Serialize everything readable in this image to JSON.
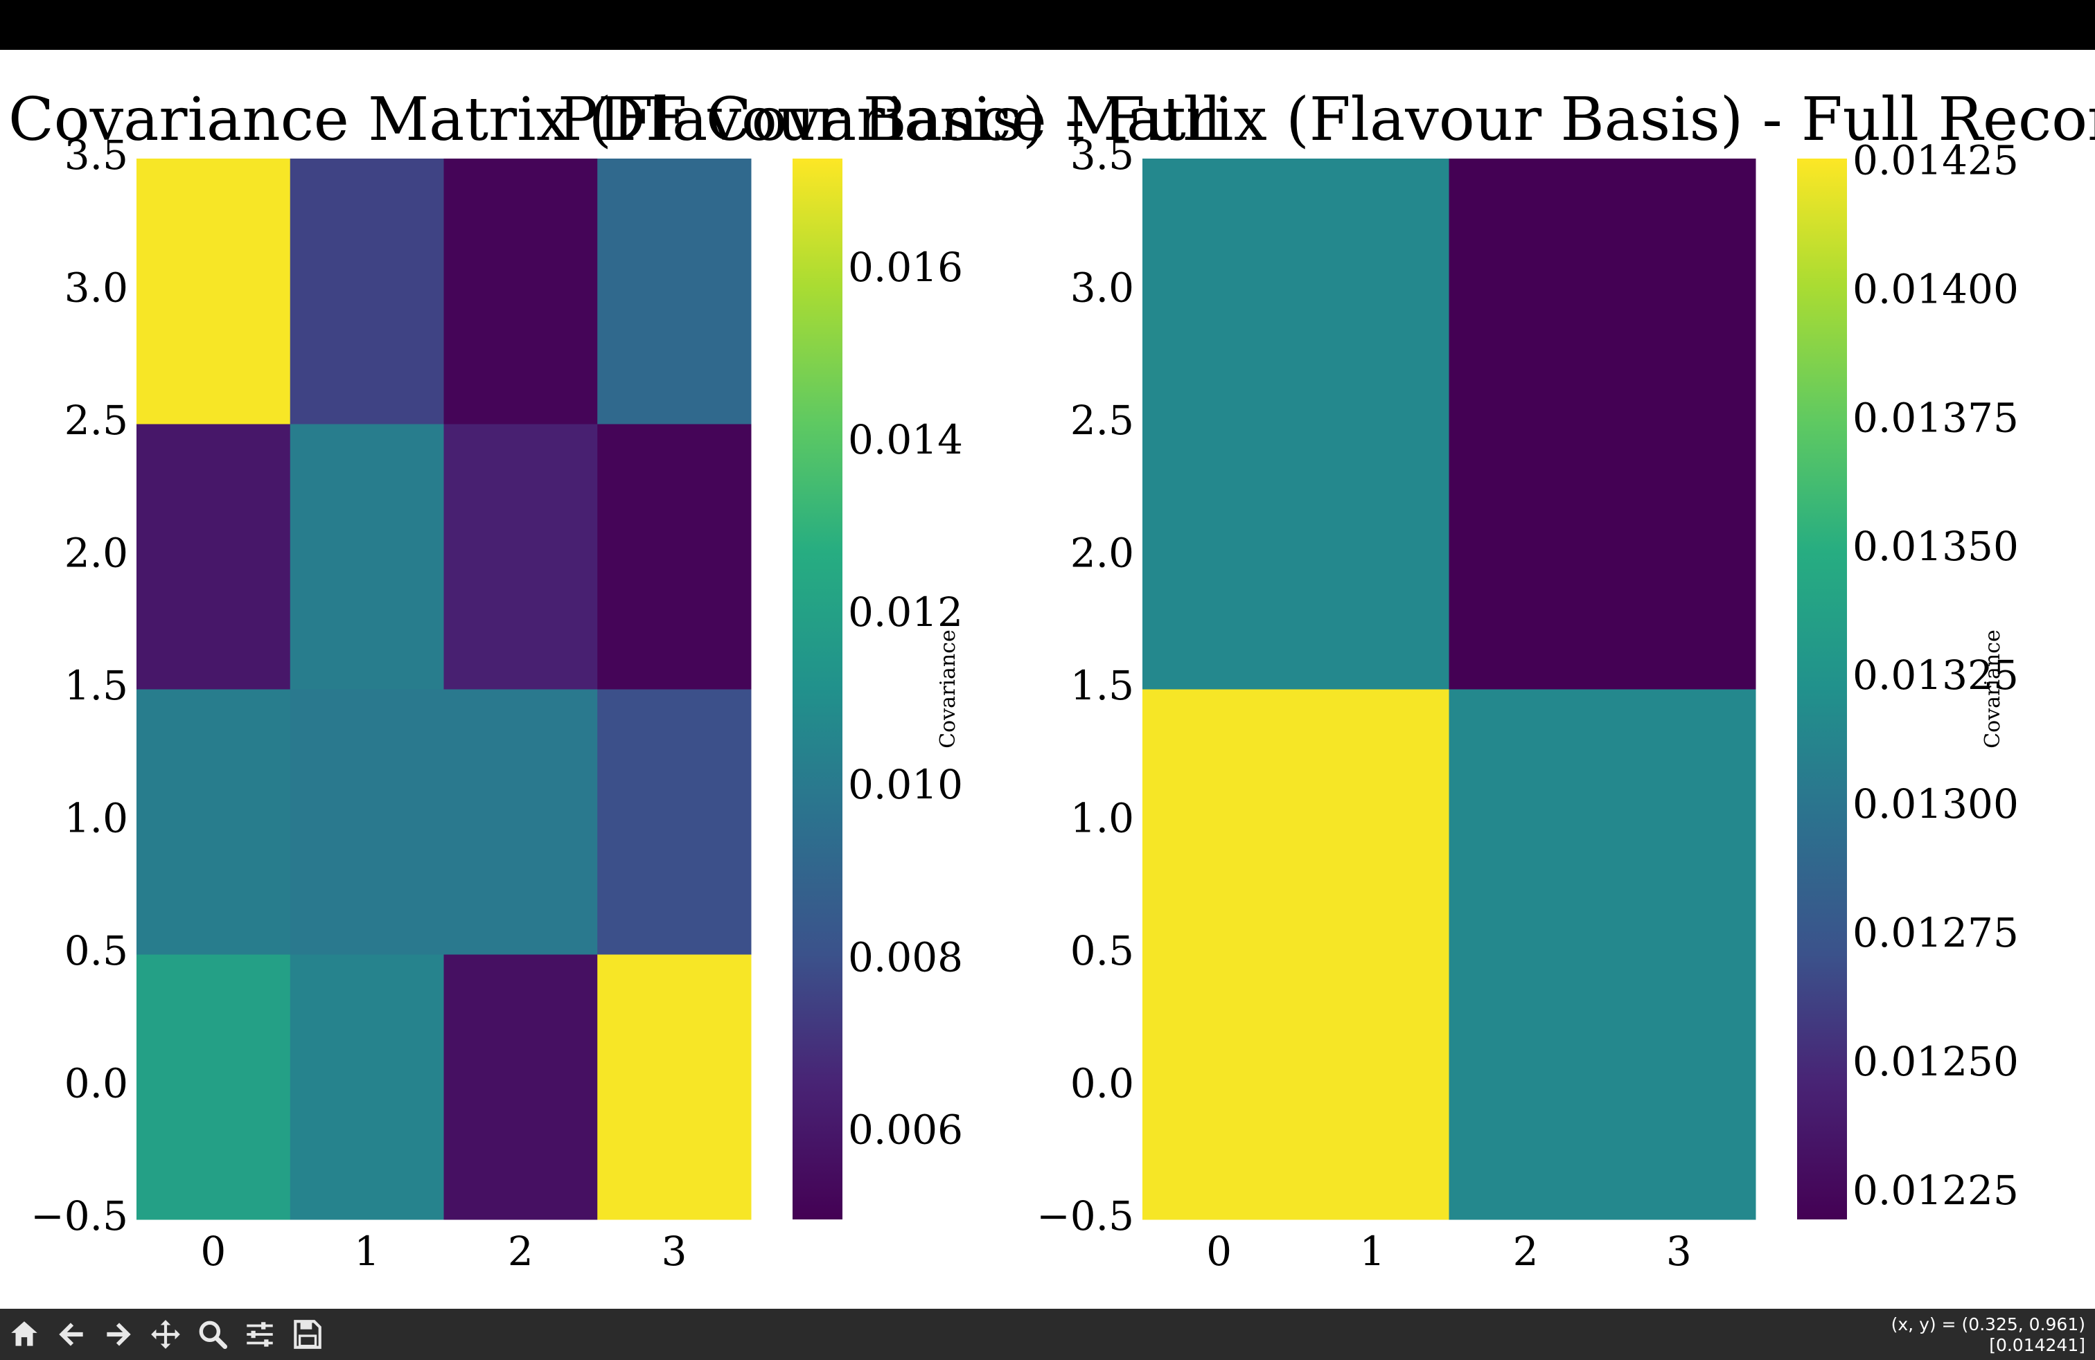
{
  "figure": {
    "titles": [
      "Covariance Matrix (Flavour Basis) - Full",
      "PDF Covariance Matrix (Flavour Basis) - Full Reconstucted -"
    ]
  },
  "chart_data": [
    {
      "type": "heatmap",
      "title": "Covariance Matrix (Flavour Basis) - Full",
      "colormap": "viridis",
      "x": [
        0,
        1,
        2,
        3
      ],
      "xlim": [
        -0.5,
        3.5
      ],
      "ylim": [
        -0.5,
        3.5
      ],
      "xticks": [
        "0",
        "1",
        "2",
        "3"
      ],
      "yticks": [
        "−0.5",
        "0.0",
        "0.5",
        "1.0",
        "1.5",
        "2.0",
        "2.5",
        "3.0",
        "3.5"
      ],
      "y_rows": [
        0,
        1,
        2,
        3
      ],
      "values": [
        [
          0.012,
          0.0105,
          0.0057,
          0.0172
        ],
        [
          0.0102,
          0.01,
          0.01,
          0.008
        ],
        [
          0.006,
          0.0102,
          0.0064,
          0.0052
        ],
        [
          0.0172,
          0.0076,
          0.0052,
          0.0092
        ]
      ],
      "colorbar": {
        "label": "Covariance",
        "range": [
          0.005,
          0.0173
        ],
        "ticks": [
          0.006,
          0.008,
          0.01,
          0.012,
          0.014,
          0.016
        ],
        "tick_labels": [
          "0.006",
          "0.008",
          "0.010",
          "0.012",
          "0.014",
          "0.016"
        ]
      }
    },
    {
      "type": "heatmap",
      "title": "PDF Covariance Matrix (Flavour Basis) - Full Reconstucted -",
      "colormap": "viridis",
      "x": [
        0,
        1,
        2,
        3
      ],
      "xlim": [
        -0.5,
        3.5
      ],
      "ylim": [
        -0.5,
        3.5
      ],
      "xticks": [
        "0",
        "1",
        "2",
        "3"
      ],
      "yticks": [
        "−0.5",
        "0.0",
        "0.5",
        "1.0",
        "1.5",
        "2.0",
        "2.5",
        "3.0",
        "3.5"
      ],
      "y_rows": [
        0,
        1,
        2,
        3
      ],
      "values": [
        [
          0.01424,
          0.01424,
          0.01316,
          0.01316
        ],
        [
          0.01424,
          0.01424,
          0.01316,
          0.01316
        ],
        [
          0.01316,
          0.01316,
          0.0122,
          0.0122
        ],
        [
          0.01316,
          0.01316,
          0.0122,
          0.0122
        ]
      ],
      "colorbar": {
        "label": "Covariance",
        "range": [
          0.0122,
          0.01426
        ],
        "ticks": [
          0.01225,
          0.0125,
          0.01275,
          0.013,
          0.01325,
          0.0135,
          0.01375,
          0.014,
          0.01425
        ],
        "tick_labels": [
          "0.01225",
          "0.01250",
          "0.01275",
          "0.01300",
          "0.01325",
          "0.01350",
          "0.01375",
          "0.01400",
          "0.01425"
        ]
      }
    }
  ],
  "toolbar": {
    "buttons": [
      {
        "name": "home-button",
        "icon": "home-icon"
      },
      {
        "name": "back-button",
        "icon": "arrow-left-icon"
      },
      {
        "name": "forward-button",
        "icon": "arrow-right-icon"
      },
      {
        "name": "pan-button",
        "icon": "move-icon"
      },
      {
        "name": "zoom-button",
        "icon": "magnifier-icon"
      },
      {
        "name": "configure-subplots-button",
        "icon": "sliders-icon"
      },
      {
        "name": "save-button",
        "icon": "floppy-disk-icon"
      }
    ],
    "coords_line1": "(x, y) = (0.325, 0.961)",
    "coords_line2": "[0.014241]"
  }
}
